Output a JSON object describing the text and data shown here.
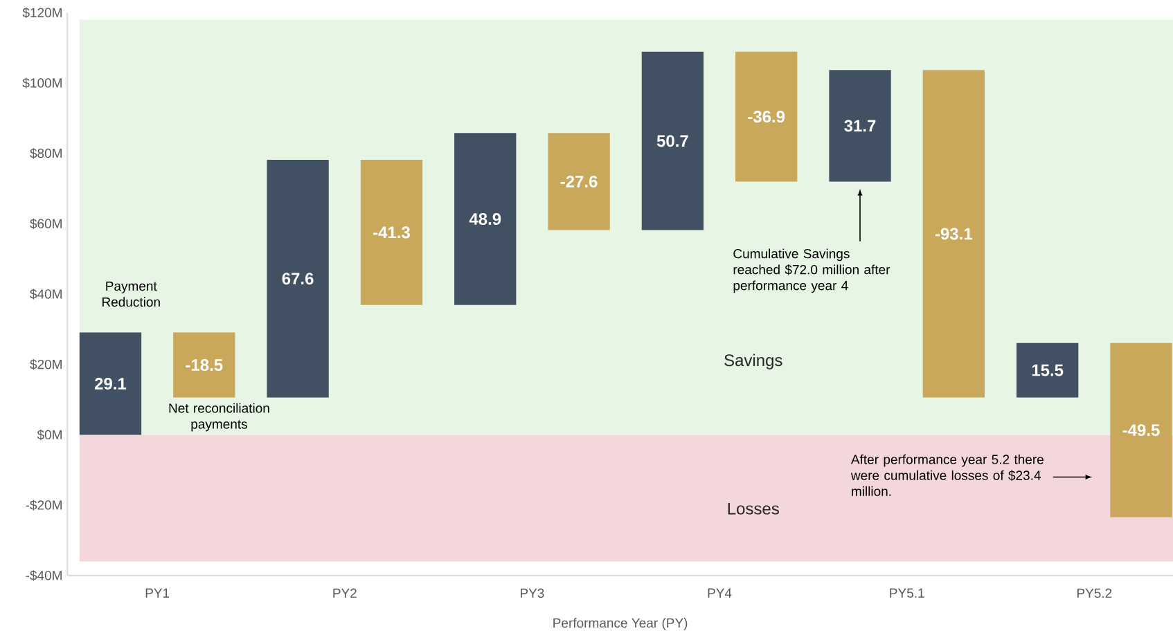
{
  "chart_data": {
    "type": "bar",
    "xlabel": "Performance Year (PY)",
    "categories": [
      "PY1",
      "PY2",
      "PY3",
      "PY4",
      "PY5.1",
      "PY5.2"
    ],
    "series": [
      {
        "color": "#415063",
        "values": [
          29.1,
          67.6,
          48.9,
          50.7,
          31.7,
          15.5
        ],
        "base": [
          0,
          10.6,
          36.9,
          58.2,
          72.0,
          10.6
        ]
      },
      {
        "color": "#c9a85c",
        "values": [
          -18.5,
          -41.3,
          -27.6,
          -36.9,
          -93.1,
          -49.5
        ],
        "base": [
          29.1,
          78.2,
          85.8,
          108.9,
          103.7,
          26.1
        ]
      }
    ],
    "data_labels": true,
    "ylim": [
      -40,
      120
    ],
    "yticks": [
      {
        "value": -40,
        "label": "-$40M"
      },
      {
        "value": -20,
        "label": "-$20M"
      },
      {
        "value": 0,
        "label": "$0M"
      },
      {
        "value": 20,
        "label": "$20M"
      },
      {
        "value": 40,
        "label": "$40M"
      },
      {
        "value": 60,
        "label": "$60M"
      },
      {
        "value": 80,
        "label": "$80M"
      },
      {
        "value": 100,
        "label": "$100M"
      },
      {
        "value": 120,
        "label": "$120M"
      }
    ],
    "bands": [
      {
        "axis": "y",
        "from": 0,
        "to": 118,
        "label": "Savings",
        "color": "#e6f5e4"
      },
      {
        "axis": "y",
        "from": -36,
        "to": 0,
        "label": "Losses",
        "color": "#f4d7da"
      }
    ],
    "annotations": [
      "Payment Reduction",
      "Net reconciliation payments",
      "Cumulative Savings reached $72.0 million after performance year 4",
      "After performance year 5.2 there were cumulative losses of $23.4 million."
    ]
  }
}
